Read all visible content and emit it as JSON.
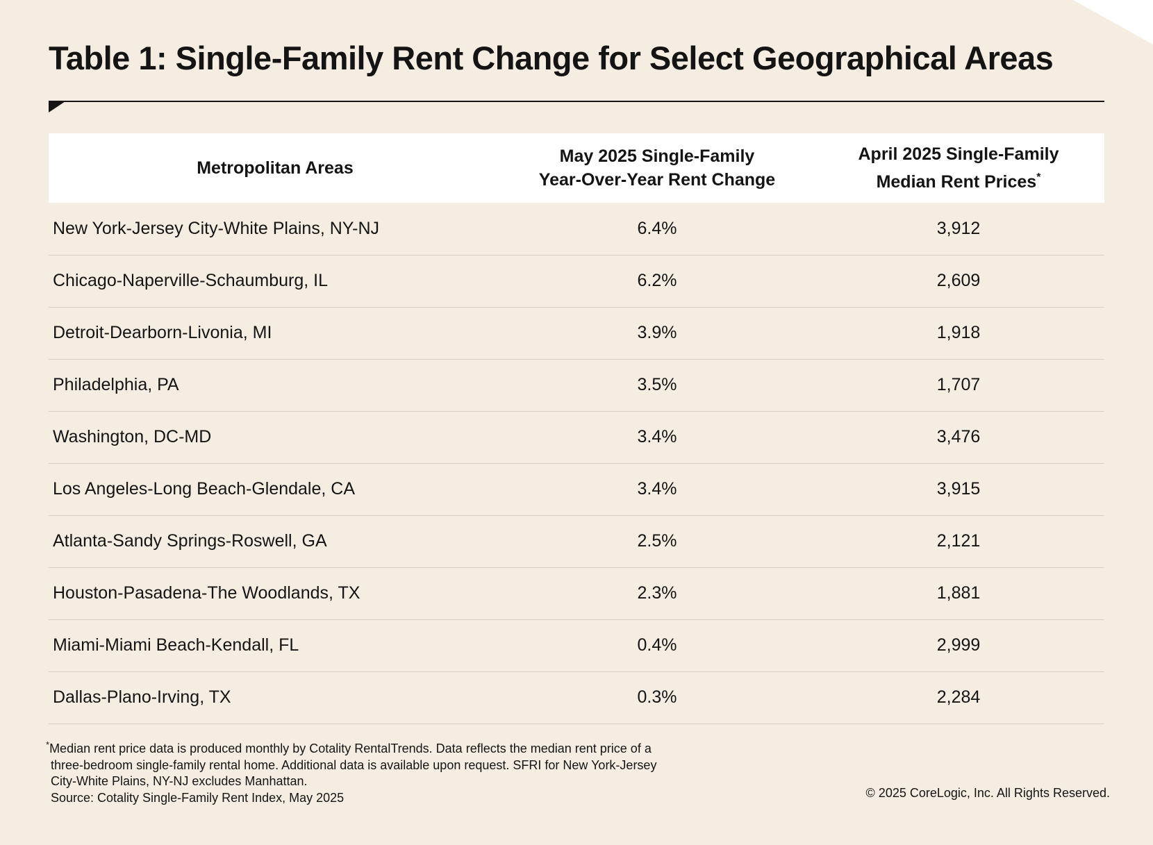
{
  "title": "Table 1: Single-Family Rent Change for Select Geographical Areas",
  "table": {
    "headers": [
      {
        "lines": [
          "Metropolitan Areas"
        ],
        "sup": ""
      },
      {
        "lines": [
          "May 2025 Single-Family",
          "Year-Over-Year Rent Change"
        ],
        "sup": ""
      },
      {
        "lines": [
          "April 2025 Single-Family",
          "Median Rent Prices"
        ],
        "sup": "*"
      }
    ],
    "rows": [
      {
        "area": "New York-Jersey City-White Plains, NY-NJ",
        "change": "6.4%",
        "rent": "3,912"
      },
      {
        "area": "Chicago-Naperville-Schaumburg, IL",
        "change": "6.2%",
        "rent": "2,609"
      },
      {
        "area": "Detroit-Dearborn-Livonia, MI",
        "change": "3.9%",
        "rent": "1,918"
      },
      {
        "area": "Philadelphia, PA",
        "change": "3.5%",
        "rent": "1,707"
      },
      {
        "area": "Washington, DC-MD",
        "change": "3.4%",
        "rent": "3,476"
      },
      {
        "area": "Los Angeles-Long Beach-Glendale, CA",
        "change": "3.4%",
        "rent": "3,915"
      },
      {
        "area": "Atlanta-Sandy Springs-Roswell, GA",
        "change": "2.5%",
        "rent": "2,121"
      },
      {
        "area": "Houston-Pasadena-The Woodlands, TX",
        "change": "2.3%",
        "rent": "1,881"
      },
      {
        "area": "Miami-Miami Beach-Kendall, FL",
        "change": "0.4%",
        "rent": "2,999"
      },
      {
        "area": "Dallas-Plano-Irving, TX",
        "change": "0.3%",
        "rent": "2,284"
      }
    ]
  },
  "footnote": {
    "marker": "*",
    "lines": [
      "Median rent price data is produced monthly by Cotality RentalTrends. Data reflects the median rent price of a",
      "three-bedroom single-family rental home. Additional data is available upon request. SFRI for New York-Jersey",
      "City-White Plains, NY-NJ excludes Manhattan.",
      "Source: Cotality Single-Family Rent Index, May 2025"
    ]
  },
  "copyright": "© 2025 CoreLogic, Inc. All Rights Reserved.",
  "colors": {
    "background": "#f5ede2",
    "header_row": "#ffffff",
    "text": "#141414",
    "row_divider": "#d8cfc2"
  }
}
